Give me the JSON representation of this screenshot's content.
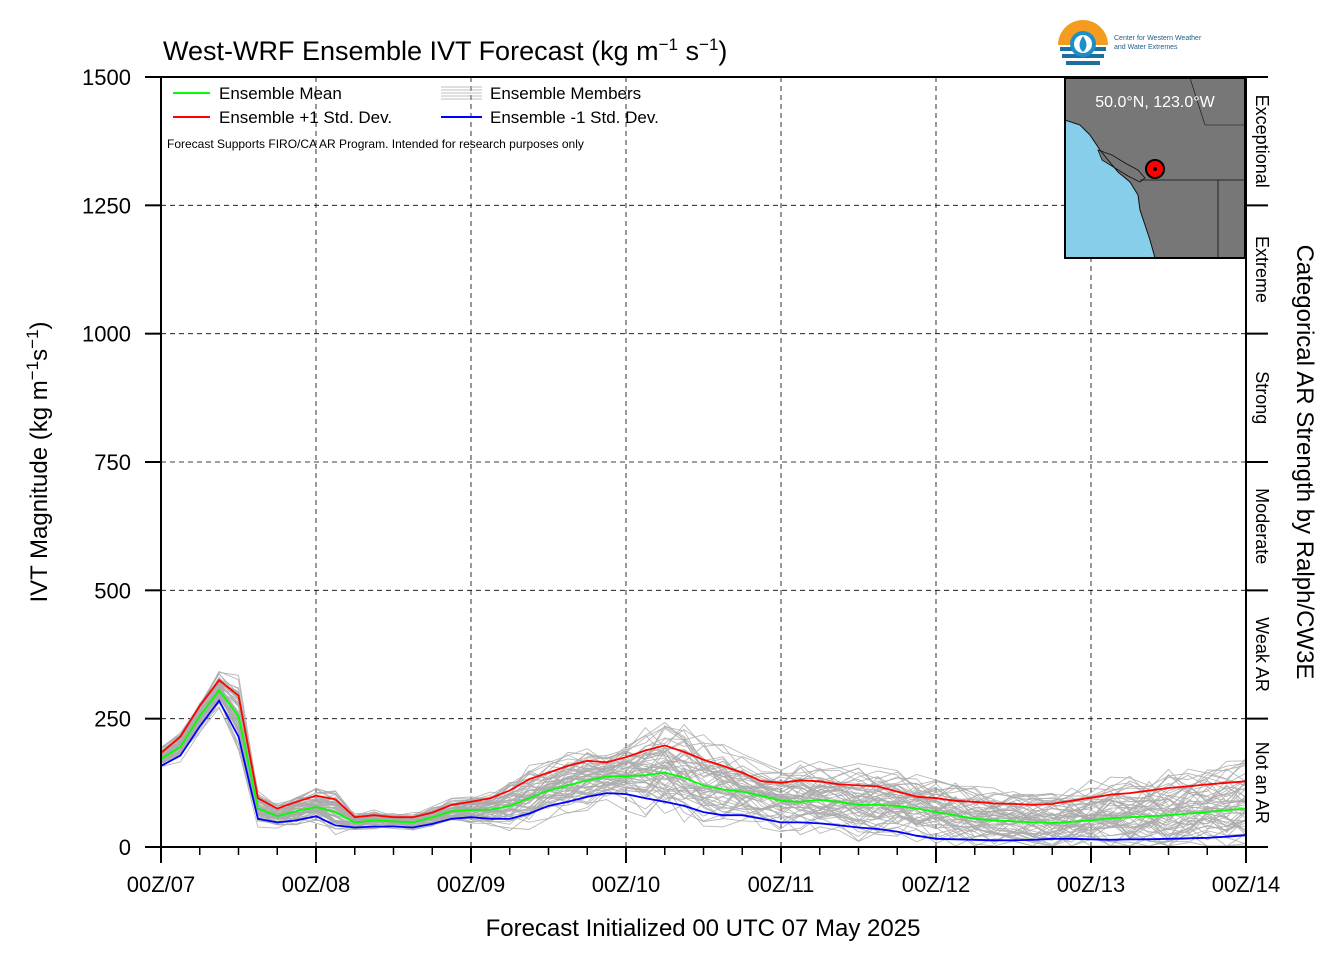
{
  "title_parts": [
    "West-WRF Ensemble IVT Forecast (kg m",
    "−1",
    " s",
    "−1",
    ")"
  ],
  "ylabel_parts": [
    "IVT Magnitude (kg m",
    "−1",
    "s",
    "−1",
    ")"
  ],
  "xlabel": "Forecast Initialized 00 UTC 07 May 2025",
  "right_label": "Categorical AR Strength by Ralph/CW3E",
  "note": "Forecast Supports FIRO/CA AR Program. Intended for research purposes only",
  "location_label": "50.0°N, 123.0°W",
  "logo": {
    "line1": "Center for Western Weather",
    "line2": "and Water Extremes"
  },
  "legend": [
    {
      "label": "Ensemble Mean",
      "color": "#00ff00"
    },
    {
      "label": "Ensemble Members",
      "color": "#aaaaaa"
    },
    {
      "label": "Ensemble +1 Std. Dev.",
      "color": "#ff0000"
    },
    {
      "label": "Ensemble -1 Std. Dev.",
      "color": "#0000ff"
    }
  ],
  "categories": [
    {
      "label": "Not an AR",
      "from": 0,
      "to": 250
    },
    {
      "label": "Weak AR",
      "from": 250,
      "to": 500
    },
    {
      "label": "Moderate",
      "from": 500,
      "to": 750
    },
    {
      "label": "Strong",
      "from": 750,
      "to": 1000
    },
    {
      "label": "Extreme",
      "from": 1000,
      "to": 1250
    },
    {
      "label": "Exceptional",
      "from": 1250,
      "to": 1500
    }
  ],
  "chart_data": {
    "type": "line",
    "x_unit": "forecast hour",
    "x_ticks": [
      {
        "hour": 0,
        "label": "00Z/07"
      },
      {
        "hour": 24,
        "label": "00Z/08"
      },
      {
        "hour": 48,
        "label": "00Z/09"
      },
      {
        "hour": 72,
        "label": "00Z/10"
      },
      {
        "hour": 96,
        "label": "00Z/11"
      },
      {
        "hour": 120,
        "label": "00Z/12"
      },
      {
        "hour": 144,
        "label": "00Z/13"
      },
      {
        "hour": 168,
        "label": "00Z/14"
      }
    ],
    "xlim": [
      0,
      168
    ],
    "ylim": [
      0,
      1500
    ],
    "y_ticks": [
      0,
      250,
      500,
      750,
      1000,
      1250,
      1500
    ],
    "grid": true,
    "x": [
      0,
      3,
      6,
      9,
      12,
      15,
      18,
      21,
      24,
      27,
      30,
      33,
      36,
      39,
      42,
      45,
      48,
      51,
      54,
      57,
      60,
      63,
      66,
      69,
      72,
      75,
      78,
      81,
      84,
      87,
      90,
      93,
      96,
      99,
      102,
      105,
      108,
      111,
      114,
      117,
      120,
      123,
      126,
      129,
      132,
      135,
      138,
      141,
      144,
      147,
      150,
      153,
      156,
      159,
      162,
      165,
      168
    ],
    "series": [
      {
        "name": "Ensemble Mean",
        "color": "#00ff00",
        "values": [
          172,
          195,
          255,
          305,
          255,
          75,
          60,
          70,
          78,
          68,
          48,
          52,
          50,
          48,
          58,
          70,
          72,
          73,
          80,
          95,
          110,
          120,
          130,
          137,
          138,
          140,
          145,
          135,
          120,
          112,
          108,
          100,
          90,
          88,
          92,
          88,
          82,
          82,
          80,
          75,
          68,
          62,
          55,
          52,
          50,
          48,
          47,
          49,
          52,
          56,
          58,
          60,
          62,
          65,
          68,
          72,
          75
        ]
      },
      {
        "name": "Ensemble +1 Std. Dev.",
        "color": "#ff0000",
        "values": [
          183,
          215,
          275,
          325,
          295,
          95,
          75,
          88,
          100,
          93,
          58,
          62,
          58,
          58,
          67,
          82,
          88,
          95,
          110,
          132,
          145,
          158,
          168,
          165,
          175,
          188,
          198,
          185,
          170,
          158,
          145,
          128,
          125,
          130,
          128,
          122,
          120,
          118,
          108,
          98,
          95,
          90,
          88,
          85,
          84,
          82,
          84,
          90,
          96,
          102,
          105,
          110,
          115,
          118,
          122,
          125,
          128
        ]
      },
      {
        "name": "Ensemble -1 Std. Dev.",
        "color": "#0000ff",
        "values": [
          158,
          178,
          235,
          285,
          215,
          55,
          48,
          52,
          60,
          42,
          38,
          40,
          40,
          38,
          45,
          55,
          58,
          55,
          55,
          65,
          80,
          88,
          98,
          105,
          103,
          95,
          88,
          80,
          68,
          62,
          62,
          55,
          48,
          48,
          46,
          42,
          38,
          35,
          30,
          22,
          16,
          15,
          14,
          13,
          13,
          14,
          16,
          16,
          15,
          14,
          15,
          15,
          16,
          17,
          18,
          20,
          23
        ]
      }
    ],
    "members_count": 60,
    "members_color": "#aaaaaa"
  }
}
